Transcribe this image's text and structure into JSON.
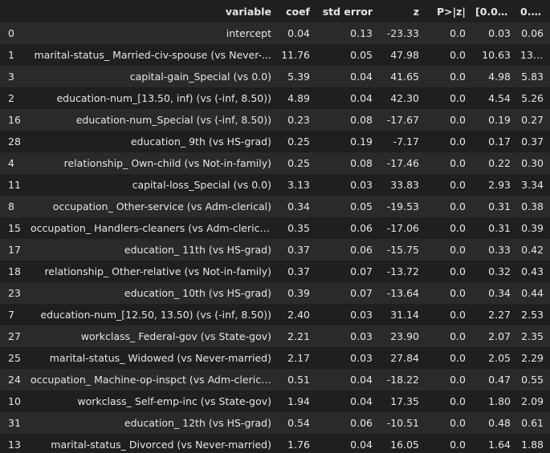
{
  "columns": [
    "",
    "variable",
    "coef",
    "std error",
    "z",
    "P>|z|",
    "[0.025",
    "0.975]"
  ],
  "rows": [
    [
      "0",
      "intercept",
      "0.04",
      "0.13",
      "-23.33",
      "0.0",
      "0.03",
      "0.06"
    ],
    [
      "1",
      "marital-status_ Married-civ-spouse (vs Never-...",
      "11.76",
      "0.05",
      "47.98",
      "0.0",
      "10.63",
      "13.01"
    ],
    [
      "3",
      "capital-gain_Special (vs 0.0)",
      "5.39",
      "0.04",
      "41.65",
      "0.0",
      "4.98",
      "5.83"
    ],
    [
      "2",
      "education-num_[13.50, inf) (vs (-inf, 8.50))",
      "4.89",
      "0.04",
      "42.30",
      "0.0",
      "4.54",
      "5.26"
    ],
    [
      "16",
      "education-num_Special (vs (-inf, 8.50))",
      "0.23",
      "0.08",
      "-17.67",
      "0.0",
      "0.19",
      "0.27"
    ],
    [
      "28",
      "education_ 9th (vs HS-grad)",
      "0.25",
      "0.19",
      "-7.17",
      "0.0",
      "0.17",
      "0.37"
    ],
    [
      "4",
      "relationship_ Own-child (vs Not-in-family)",
      "0.25",
      "0.08",
      "-17.46",
      "0.0",
      "0.22",
      "0.30"
    ],
    [
      "11",
      "capital-loss_Special (vs 0.0)",
      "3.13",
      "0.03",
      "33.83",
      "0.0",
      "2.93",
      "3.34"
    ],
    [
      "8",
      "occupation_ Other-service (vs Adm-clerical)",
      "0.34",
      "0.05",
      "-19.53",
      "0.0",
      "0.31",
      "0.38"
    ],
    [
      "15",
      "occupation_ Handlers-cleaners (vs Adm-clerical)",
      "0.35",
      "0.06",
      "-17.06",
      "0.0",
      "0.31",
      "0.39"
    ],
    [
      "17",
      "education_ 11th (vs HS-grad)",
      "0.37",
      "0.06",
      "-15.75",
      "0.0",
      "0.33",
      "0.42"
    ],
    [
      "18",
      "relationship_ Other-relative (vs Not-in-family)",
      "0.37",
      "0.07",
      "-13.72",
      "0.0",
      "0.32",
      "0.43"
    ],
    [
      "23",
      "education_ 10th (vs HS-grad)",
      "0.39",
      "0.07",
      "-13.64",
      "0.0",
      "0.34",
      "0.44"
    ],
    [
      "7",
      "education-num_[12.50, 13.50) (vs (-inf, 8.50))",
      "2.40",
      "0.03",
      "31.14",
      "0.0",
      "2.27",
      "2.53"
    ],
    [
      "27",
      "workclass_ Federal-gov (vs State-gov)",
      "2.21",
      "0.03",
      "23.90",
      "0.0",
      "2.07",
      "2.35"
    ],
    [
      "25",
      "marital-status_ Widowed (vs Never-married)",
      "2.17",
      "0.03",
      "27.84",
      "0.0",
      "2.05",
      "2.29"
    ],
    [
      "24",
      "occupation_ Machine-op-inspct (vs Adm-clerical)",
      "0.51",
      "0.04",
      "-18.22",
      "0.0",
      "0.47",
      "0.55"
    ],
    [
      "10",
      "workclass_ Self-emp-inc (vs State-gov)",
      "1.94",
      "0.04",
      "17.35",
      "0.0",
      "1.80",
      "2.09"
    ],
    [
      "31",
      "education_ 12th (vs HS-grad)",
      "0.54",
      "0.06",
      "-10.51",
      "0.0",
      "0.48",
      "0.61"
    ],
    [
      "13",
      "marital-status_ Divorced (vs Never-married)",
      "1.76",
      "0.04",
      "16.05",
      "0.0",
      "1.64",
      "1.88"
    ]
  ]
}
